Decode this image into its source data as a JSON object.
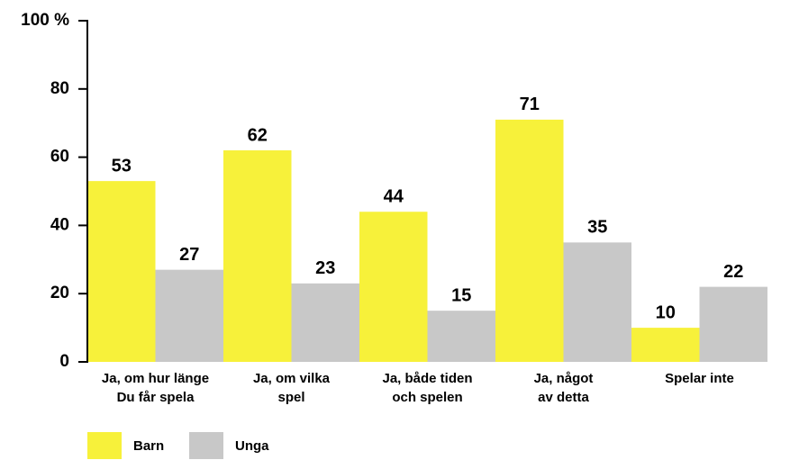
{
  "chart_data": {
    "type": "bar",
    "categories": [
      "Ja, om hur länge\nDu får spela",
      "Ja, om vilka\nspel",
      "Ja, både tiden\noch spelen",
      "Ja, något\nav detta",
      "Spelar inte"
    ],
    "series": [
      {
        "name": "Barn",
        "color": "#f7f13a",
        "values": [
          53,
          62,
          44,
          71,
          10
        ]
      },
      {
        "name": "Unga",
        "color": "#c8c8c8",
        "values": [
          27,
          23,
          15,
          35,
          22
        ]
      }
    ],
    "ylim": [
      0,
      100
    ],
    "yticks": [
      0,
      20,
      40,
      60,
      80,
      {
        "value": 100,
        "label": "100 %"
      }
    ]
  }
}
